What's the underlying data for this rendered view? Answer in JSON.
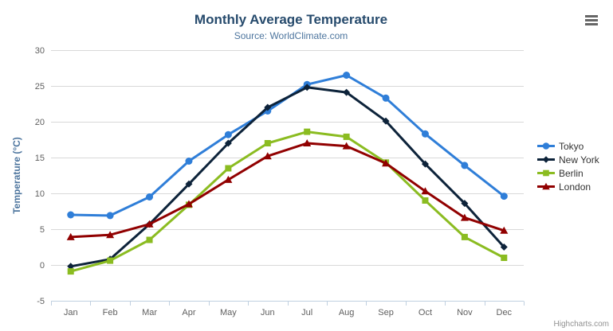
{
  "chart_data": {
    "type": "line",
    "title": "Monthly Average Temperature",
    "subtitle": "Source: WorldClimate.com",
    "categories": [
      "Jan",
      "Feb",
      "Mar",
      "Apr",
      "May",
      "Jun",
      "Jul",
      "Aug",
      "Sep",
      "Oct",
      "Nov",
      "Dec"
    ],
    "series": [
      {
        "name": "Tokyo",
        "color": "#2f7ed8",
        "marker": "circle",
        "values": [
          7.0,
          6.9,
          9.5,
          14.5,
          18.2,
          21.5,
          25.2,
          26.5,
          23.3,
          18.3,
          13.9,
          9.6
        ]
      },
      {
        "name": "New York",
        "color": "#0d233a",
        "marker": "diamond",
        "values": [
          -0.2,
          0.8,
          5.7,
          11.3,
          17.0,
          22.0,
          24.8,
          24.1,
          20.1,
          14.1,
          8.6,
          2.5
        ]
      },
      {
        "name": "Berlin",
        "color": "#8bbc21",
        "marker": "square",
        "values": [
          -0.9,
          0.6,
          3.5,
          8.4,
          13.5,
          17.0,
          18.6,
          17.9,
          14.3,
          9.0,
          3.9,
          1.0
        ]
      },
      {
        "name": "London",
        "color": "#910000",
        "marker": "triangle",
        "values": [
          3.9,
          4.2,
          5.7,
          8.5,
          11.9,
          15.2,
          17.0,
          16.6,
          14.2,
          10.3,
          6.6,
          4.8
        ]
      }
    ],
    "xlabel": "",
    "ylabel": "Temperature (°C)",
    "ylim": [
      -5,
      30
    ],
    "tick_interval": 5,
    "grid": true,
    "legend_position": "right"
  },
  "credits": {
    "label": "Highcharts.com"
  },
  "menu": {
    "icon": "hamburger-icon"
  },
  "colors": {
    "title": "#274b6d",
    "subtitle": "#4d759e",
    "axis_label": "#606060",
    "axis_title": "#4d759e",
    "grid": "#d8d8d8",
    "axis_line": "#c0d0e0",
    "legend_text": "#333333",
    "credits": "#909090",
    "menu_bars": "#666666"
  }
}
